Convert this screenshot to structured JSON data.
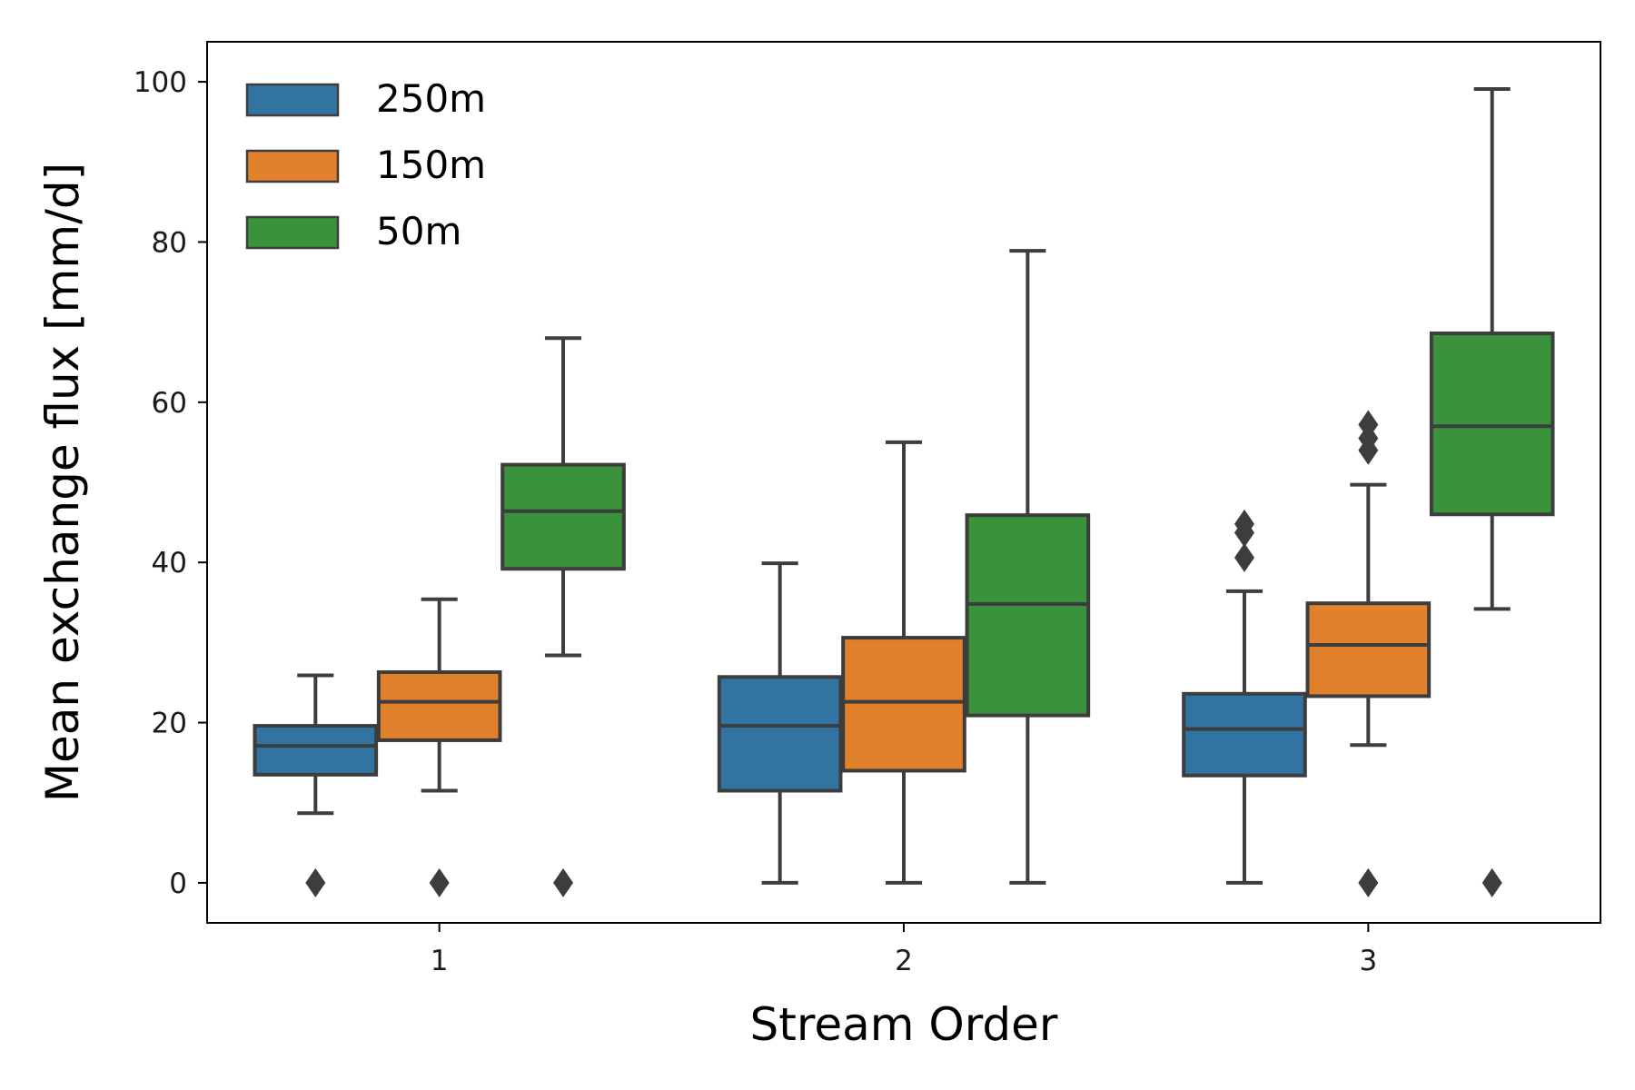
{
  "chart_data": {
    "type": "box",
    "xlabel": "Stream Order",
    "ylabel": "Mean exchange flux [mm/d]",
    "categories": [
      "1",
      "2",
      "3"
    ],
    "ylim": [
      -5,
      105
    ],
    "yticks": [
      0,
      20,
      40,
      60,
      80,
      100
    ],
    "grid": false,
    "legend_position": "top-left",
    "series": [
      {
        "name": "250m",
        "color": "#3274a1",
        "boxes": [
          {
            "whisker_low": 8.7,
            "q1": 13.5,
            "median": 17.1,
            "q3": 19.6,
            "whisker_high": 25.9,
            "outliers": [
              0
            ]
          },
          {
            "whisker_low": 0,
            "q1": 11.5,
            "median": 19.6,
            "q3": 25.7,
            "whisker_high": 39.9,
            "outliers": []
          },
          {
            "whisker_low": 0,
            "q1": 13.4,
            "median": 19.2,
            "q3": 23.6,
            "whisker_high": 36.4,
            "outliers": [
              40.6,
              43.7,
              44.8
            ]
          }
        ]
      },
      {
        "name": "150m",
        "color": "#e1812c",
        "boxes": [
          {
            "whisker_low": 11.5,
            "q1": 17.8,
            "median": 22.6,
            "q3": 26.3,
            "whisker_high": 35.4,
            "outliers": [
              0
            ]
          },
          {
            "whisker_low": 0,
            "q1": 14.0,
            "median": 22.6,
            "q3": 30.6,
            "whisker_high": 55.0,
            "outliers": []
          },
          {
            "whisker_low": 17.2,
            "q1": 23.3,
            "median": 29.7,
            "q3": 34.9,
            "whisker_high": 49.7,
            "outliers": [
              0,
              54.0,
              55.5,
              57.2
            ]
          }
        ]
      },
      {
        "name": "50m",
        "color": "#3a923a",
        "boxes": [
          {
            "whisker_low": 28.4,
            "q1": 39.2,
            "median": 46.4,
            "q3": 52.2,
            "whisker_high": 68.0,
            "outliers": [
              0
            ]
          },
          {
            "whisker_low": 0,
            "q1": 20.9,
            "median": 34.8,
            "q3": 45.9,
            "whisker_high": 78.9,
            "outliers": []
          },
          {
            "whisker_low": 34.2,
            "q1": 46.0,
            "median": 57.0,
            "q3": 68.6,
            "whisker_high": 99.1,
            "outliers": [
              0
            ]
          }
        ]
      }
    ]
  }
}
